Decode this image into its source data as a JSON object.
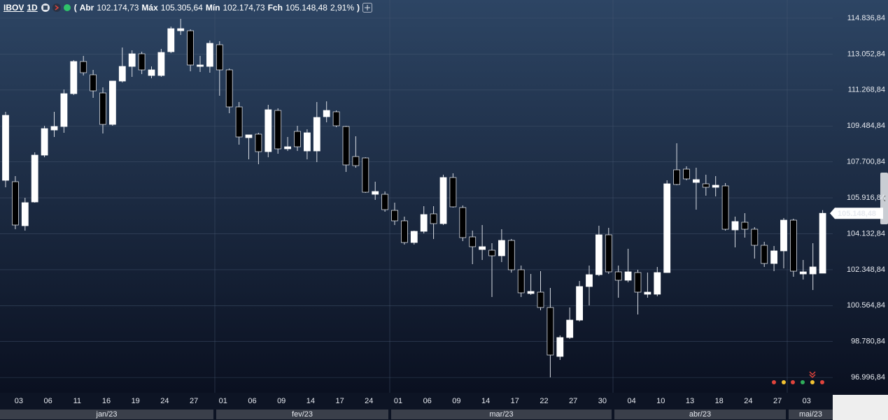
{
  "chart_data": {
    "type": "candlestick",
    "header": {
      "symbol": "IBOV",
      "interval": "1D",
      "bracket_open": "(",
      "bracket_close": ")",
      "open": {
        "name": "Abr",
        "value": 102174.73,
        "label": "102.174,73"
      },
      "high": {
        "name": "Máx",
        "value": 105305.64,
        "label": "105.305,64"
      },
      "low": {
        "name": "Mín",
        "value": 102174.73,
        "label": "102.174,73"
      },
      "close": {
        "name": "Fch",
        "value": 105148.48,
        "label": "105.148,48"
      },
      "change": {
        "value": 2.91,
        "label": "2,91%"
      }
    },
    "last_price": {
      "value": 105148.48,
      "label": "105.148,48"
    },
    "up_color": "#ffffff",
    "down_color": "#000000",
    "grid": true,
    "categories": [
      null,
      "03",
      null,
      null,
      "06",
      null,
      null,
      "11",
      null,
      null,
      "16",
      null,
      null,
      "19",
      null,
      null,
      "24",
      null,
      null,
      "27",
      null,
      null,
      "01",
      null,
      null,
      "06",
      null,
      null,
      "09",
      null,
      null,
      "14",
      null,
      null,
      "17",
      null,
      null,
      "24",
      null,
      null,
      "01",
      null,
      null,
      "06",
      null,
      null,
      "09",
      null,
      null,
      "14",
      null,
      null,
      "17",
      null,
      null,
      "22",
      null,
      null,
      "27",
      null,
      null,
      "30",
      null,
      null,
      "04",
      null,
      null,
      "10",
      null,
      null,
      "13",
      null,
      null,
      "18",
      null,
      null,
      "24",
      null,
      null,
      "27",
      null,
      null,
      "03",
      null,
      null
    ],
    "months": [
      "jan/23",
      "fev/23",
      "mar/23",
      "abr/23",
      "mai/23"
    ],
    "open": [
      106786,
      106717,
      104531,
      105711,
      108036,
      109285,
      109458,
      111089,
      112685,
      112026,
      111124,
      109562,
      111714,
      112442,
      113067,
      111991,
      111991,
      113171,
      114212,
      114212,
      112442,
      112442,
      113518,
      112269,
      110430,
      108903,
      109077,
      108209,
      110256,
      108348,
      109215,
      108244,
      108244,
      109944,
      110187,
      109458,
      107966,
      107897,
      106092,
      106092,
      105294,
      104774,
      103698,
      104253,
      105121,
      104635,
      106925,
      105433,
      103976,
      103351,
      103316,
      103039,
      103802,
      102345,
      101165,
      101234,
      100471,
      98042,
      98979,
      99846,
      101512,
      102102,
      104080,
      102241,
      101824,
      102206,
      101130,
      101130,
      102206,
      107307,
      107342,
      106682,
      106613,
      106439,
      106509,
      104323,
      104704,
      104357,
      103559,
      102657,
      103282,
      104808,
      102137,
      102137,
      102174.73
    ],
    "high": [
      110187,
      106995,
      105919,
      108174,
      109493,
      110187,
      111297,
      112755,
      112963,
      112269,
      111401,
      111714,
      113379,
      113241,
      113171,
      112442,
      113310,
      114420,
      114802,
      114282,
      112963,
      113726,
      113692,
      112338,
      110673,
      109042,
      109146,
      110534,
      110360,
      108938,
      109493,
      109319,
      110673,
      110707,
      110256,
      109493,
      108972,
      107931,
      106717,
      106231,
      105676,
      104982,
      104288,
      105502,
      105502,
      107064,
      107133,
      105537,
      104288,
      104566,
      103663,
      104357,
      103872,
      102553,
      102137,
      102275,
      101443,
      99083,
      100471,
      101790,
      102553,
      104531,
      104427,
      102553,
      103386,
      102345,
      102206,
      102484,
      106786,
      108625,
      107480,
      107411,
      107064,
      106995,
      106648,
      104982,
      105155,
      104461,
      103733,
      103525,
      104913,
      104878,
      102831,
      103663,
      105305.64
    ],
    "low": [
      106439,
      104357,
      104288,
      105676,
      107931,
      108938,
      109146,
      111020,
      111991,
      110881,
      109111,
      109493,
      111644,
      111922,
      112061,
      111853,
      111922,
      113102,
      114004,
      112200,
      112165,
      112130,
      110985,
      110118,
      108556,
      107827,
      107584,
      107931,
      108105,
      108244,
      108244,
      107827,
      107689,
      109666,
      109424,
      107203,
      107411,
      106162,
      105815,
      105225,
      104566,
      103594,
      103594,
      104149,
      103872,
      104566,
      105433,
      103767,
      102622,
      102831,
      100991,
      102726,
      102206,
      100991,
      101096,
      100332,
      97001,
      97868,
      98909,
      99777,
      100575,
      102032,
      102137,
      100957,
      101720,
      100124,
      100957,
      101026,
      102206,
      106543,
      106786,
      105329,
      106023,
      105988,
      104288,
      103455,
      103941,
      102900,
      102484,
      102275,
      102414,
      101998,
      101859,
      101338,
      102174.73
    ],
    "close": [
      110013,
      104566,
      105676,
      108036,
      109354,
      109458,
      111089,
      112685,
      112130,
      111228,
      109562,
      111714,
      112442,
      113067,
      112269,
      112269,
      113136,
      114316,
      114316,
      112512,
      112512,
      113588,
      112269,
      110430,
      108938,
      109042,
      108209,
      110291,
      108348,
      108452,
      108452,
      109146,
      109909,
      110256,
      109493,
      107550,
      107515,
      106196,
      106231,
      105329,
      104774,
      103698,
      104253,
      105086,
      104635,
      106925,
      105468,
      103941,
      103490,
      103490,
      103039,
      103802,
      102345,
      101200,
      101269,
      100471,
      98111,
      98979,
      99846,
      101512,
      102102,
      104080,
      102241,
      101824,
      102241,
      101234,
      101234,
      102206,
      106613,
      106578,
      106856,
      106821,
      106439,
      106543,
      104357,
      104739,
      104357,
      103559,
      102657,
      103282,
      104808,
      102275,
      102241,
      102484,
      105148.48
    ],
    "ylim": [
      96238,
      115739
    ],
    "yticks": [
      {
        "value": 96996.84,
        "label": "96.996,84"
      },
      {
        "value": 98780.84,
        "label": "98.780,84"
      },
      {
        "value": 100564.84,
        "label": "100.564,84"
      },
      {
        "value": 102348.84,
        "label": "102.348,84"
      },
      {
        "value": 104132.84,
        "label": "104.132,84"
      },
      {
        "value": 105916.84,
        "label": "105.916,84"
      },
      {
        "value": 107700.84,
        "label": "107.700,84"
      },
      {
        "value": 109484.84,
        "label": "109.484,84"
      },
      {
        "value": 111268.84,
        "label": "111.268,84"
      },
      {
        "value": 113052.84,
        "label": "113.052,84"
      },
      {
        "value": 114836.84,
        "label": "114.836,84"
      }
    ]
  }
}
